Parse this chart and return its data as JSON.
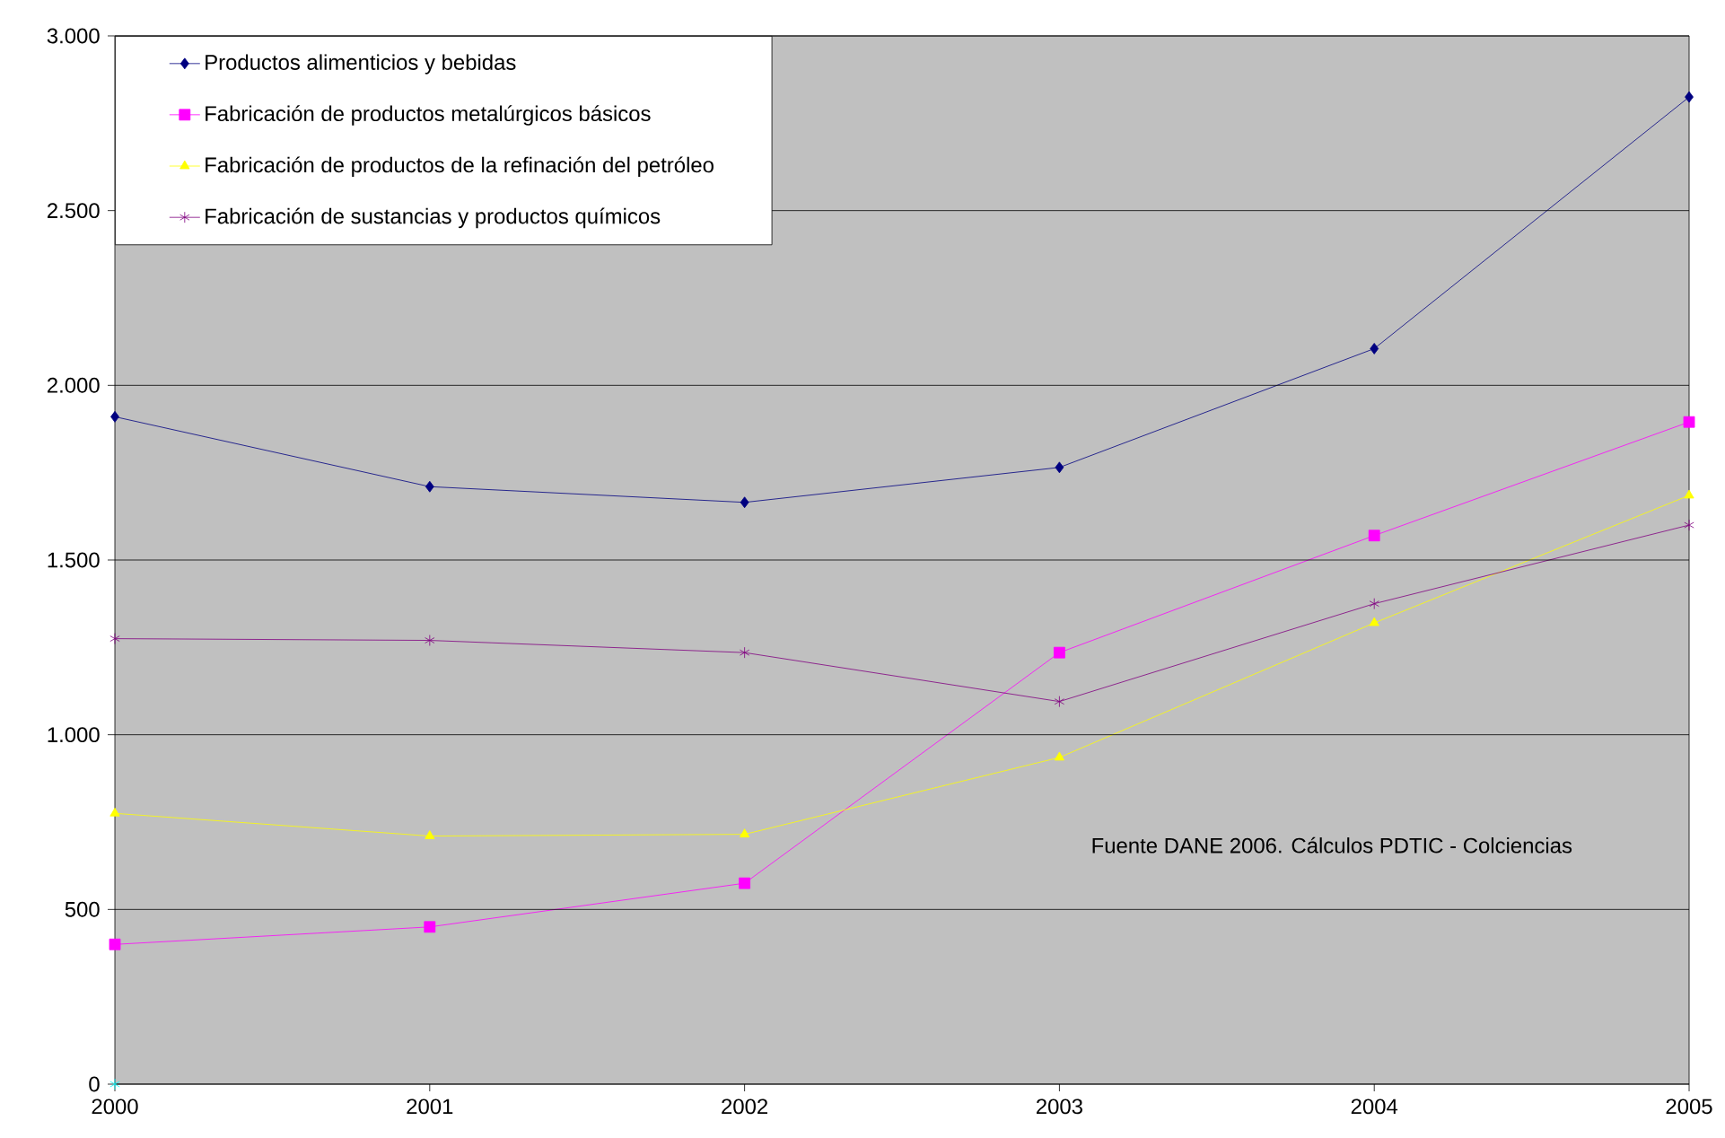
{
  "chart_data": {
    "type": "line",
    "x": [
      2000,
      2001,
      2002,
      2003,
      2004,
      2005
    ],
    "xlim": [
      2000,
      2005
    ],
    "xticks": [
      2000,
      2001,
      2002,
      2003,
      2004,
      2005
    ],
    "ylim": [
      0,
      3000
    ],
    "yticks": [
      0,
      {
        "value": 500,
        "label": "500"
      },
      {
        "value": 1000,
        "label": "1.000"
      },
      {
        "value": 1500,
        "label": "1.500"
      },
      {
        "value": 2000,
        "label": "2.000"
      },
      {
        "value": 2500,
        "label": "2.500"
      },
      {
        "value": 3000,
        "label": "3.000"
      }
    ],
    "grid": "y",
    "legend": "top left",
    "line_style": "solid",
    "series": [
      {
        "name": "Productos alimenticios y bebidas",
        "color": "#000080",
        "marker": "diamond",
        "values": [
          1910,
          1710,
          1665,
          1765,
          2105,
          2825
        ]
      },
      {
        "name": "Fabricación de productos metalúrgicos básicos",
        "color": "#ff00ff",
        "marker": "square",
        "values": [
          400,
          450,
          575,
          1235,
          1570,
          1895
        ]
      },
      {
        "name": "Fabricación de productos de la refinación del petróleo",
        "color": "#ffff00",
        "marker": "triangle",
        "values": [
          775,
          710,
          715,
          935,
          1320,
          1685
        ]
      },
      {
        "name": "Fabricación de sustancias y  productos químicos",
        "color": "#800080",
        "marker": "cross",
        "values": [
          1275,
          1270,
          1235,
          1095,
          1375,
          1600
        ]
      },
      {
        "color": "#00ffff",
        "type": "scatter",
        "marker": "cross",
        "values": [
          0,
          null,
          null,
          null,
          null,
          null
        ]
      }
    ],
    "annotations": [
      "Fuente DANE 2006. Cálculos PDTIC - Colciencias"
    ]
  }
}
